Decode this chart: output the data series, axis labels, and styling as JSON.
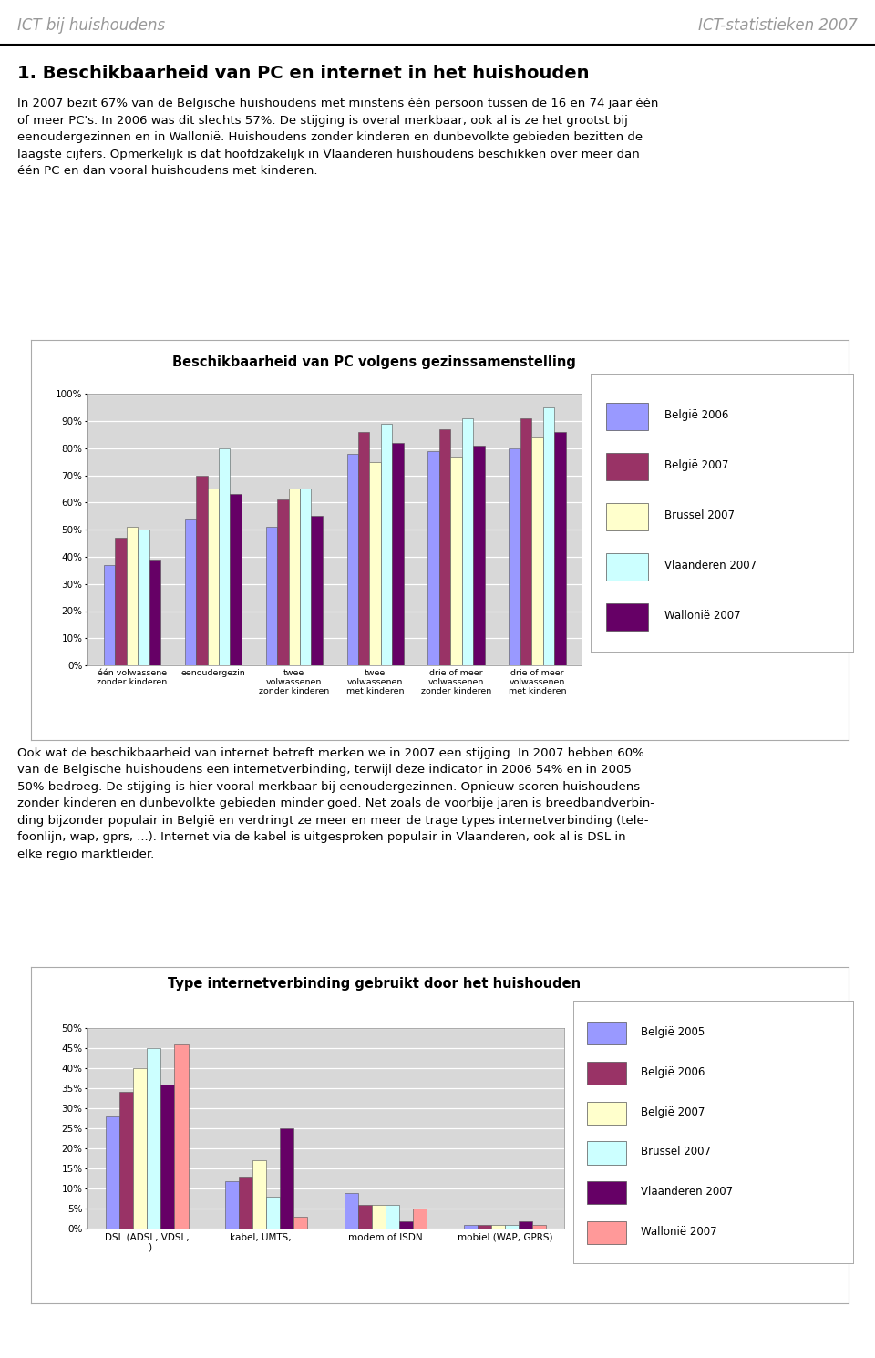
{
  "header_left": "ICT bij huishoudens",
  "header_right": "ICT-statistieken 2007",
  "section_title": "1. Beschikbaarheid van PC en internet in het huishouden",
  "body_text1": "In 2007 bezit 67% van de Belgische huishoudens met minstens één persoon tussen de 16 en 74 jaar één\nof meer PC's. In 2006 was dit slechts 57%. De stijging is overal merkbaar, ook al is ze het grootst bij\neenoudergezinnen en in Wallonië. Huishoudens zonder kinderen en dunbevolkte gebieden bezitten de\nlaagste cijfers. Opmerkelijk is dat hoofdzakelijk in Vlaanderen huishoudens beschikken over meer dan\néén PC en dan vooral huishoudens met kinderen.",
  "chart1_title": "Beschikbaarheid van PC volgens gezinssamenstelling",
  "chart1_categories": [
    "één volwassene\nzonder kinderen",
    "eenoudergezin",
    "twee\nvolwassenen\nzonder kinderen",
    "twee\nvolwassenen\nmet kinderen",
    "drie of meer\nvolwassenen\nzonder kinderen",
    "drie of meer\nvolwassenen\nmet kinderen"
  ],
  "chart1_series_order": [
    "België 2006",
    "België 2007",
    "Brussel 2007",
    "Vlaanderen 2007",
    "Wallonië 2007"
  ],
  "chart1_series": {
    "België 2006": [
      37,
      54,
      51,
      78,
      79,
      80
    ],
    "België 2007": [
      47,
      70,
      61,
      86,
      87,
      91
    ],
    "Brussel 2007": [
      51,
      65,
      65,
      75,
      77,
      84
    ],
    "Vlaanderen 2007": [
      50,
      80,
      65,
      89,
      91,
      95
    ],
    "Wallonië 2007": [
      39,
      63,
      55,
      82,
      81,
      86
    ]
  },
  "chart1_colors": {
    "België 2006": "#9999FF",
    "België 2007": "#993366",
    "Brussel 2007": "#FFFFCC",
    "Vlaanderen 2007": "#CCFFFF",
    "Wallonië 2007": "#660066"
  },
  "chart1_yticks": [
    0,
    10,
    20,
    30,
    40,
    50,
    60,
    70,
    80,
    90,
    100
  ],
  "body_text2": "Ook wat de beschikbaarheid van internet betreft merken we in 2007 een stijging. In 2007 hebben 60%\nvan de Belgische huishoudens een internetverbinding, terwijl deze indicator in 2006 54% en in 2005\n50% bedroeg. De stijging is hier vooral merkbaar bij eenoudergezinnen. Opnieuw scoren huishoudens\nzonder kinderen en dunbevolkte gebieden minder goed. Net zoals de voorbije jaren is breedbandverbin-\nding bijzonder populair in België en verdringt ze meer en meer de trage types internetverbinding (tele-\nfoonlijn, wap, gprs, ...). Internet via de kabel is uitgesproken populair in Vlaanderen, ook al is DSL in\nelke regio marktleider.",
  "chart2_title": "Type internetverbinding gebruikt door het huishouden",
  "chart2_categories": [
    "DSL (ADSL, VDSL,\n...)",
    "kabel, UMTS, ...",
    "modem of ISDN",
    "mobiel (WAP, GPRS)"
  ],
  "chart2_series_order": [
    "België 2005",
    "België 2006",
    "België 2007",
    "Brussel 2007",
    "Vlaanderen 2007",
    "Wallonië 2007"
  ],
  "chart2_series": {
    "België 2005": [
      28,
      12,
      9,
      1
    ],
    "België 2006": [
      34,
      13,
      6,
      1
    ],
    "België 2007": [
      40,
      17,
      6,
      1
    ],
    "Brussel 2007": [
      45,
      8,
      6,
      1
    ],
    "Vlaanderen 2007": [
      36,
      25,
      2,
      2
    ],
    "Wallonië 2007": [
      46,
      3,
      5,
      1
    ]
  },
  "chart2_colors": {
    "België 2005": "#9999FF",
    "België 2006": "#993366",
    "België 2007": "#FFFFCC",
    "Brussel 2007": "#CCFFFF",
    "Vlaanderen 2007": "#660066",
    "Wallonië 2007": "#FF9999"
  },
  "chart2_yticks": [
    0,
    5,
    10,
    15,
    20,
    25,
    30,
    35,
    40,
    45,
    50
  ],
  "bg_color": "#D8D8D8"
}
